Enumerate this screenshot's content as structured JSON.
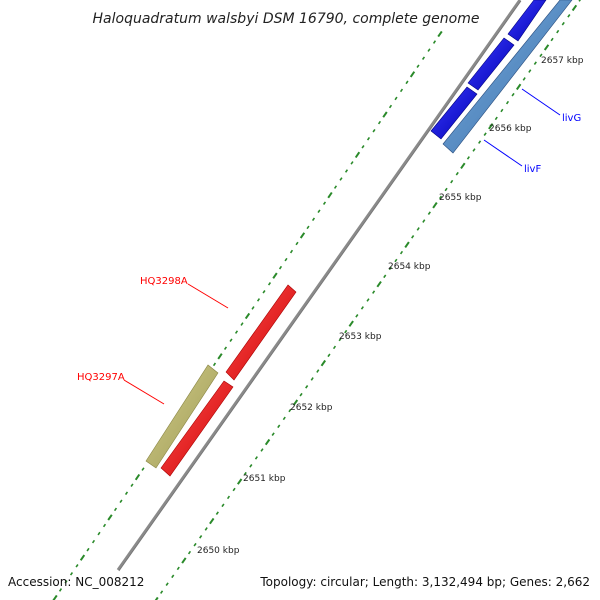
{
  "title": "Haloquadratum walsbyi DSM 16790, complete genome",
  "footer": {
    "accession": "Accession: NC_008212",
    "summary": "Topology: circular; Length: 3,132,494 bp; Genes: 2,662"
  },
  "ticks": [
    {
      "label": "2650 kbp"
    },
    {
      "label": "2651 kbp"
    },
    {
      "label": "2652 kbp"
    },
    {
      "label": "2653 kbp"
    },
    {
      "label": "2654 kbp"
    },
    {
      "label": "2655 kbp"
    },
    {
      "label": "2656 kbp"
    },
    {
      "label": "2657 kbp"
    }
  ],
  "genes": [
    {
      "name": "HQ3298A",
      "color": "#ff0000"
    },
    {
      "name": "HQ3297A",
      "color": "#ff0000"
    },
    {
      "name": "livG",
      "color": "#0000ff"
    },
    {
      "name": "livF",
      "color": "#0000ff"
    }
  ],
  "colors": {
    "backbone": "#8a8a8a",
    "tick": "#2a8a2a",
    "forward_strand": "#ff0000",
    "other_strand": "#b9b46a",
    "blue_forward": "#0000ff",
    "blue_reverse": "#4a86c8"
  }
}
